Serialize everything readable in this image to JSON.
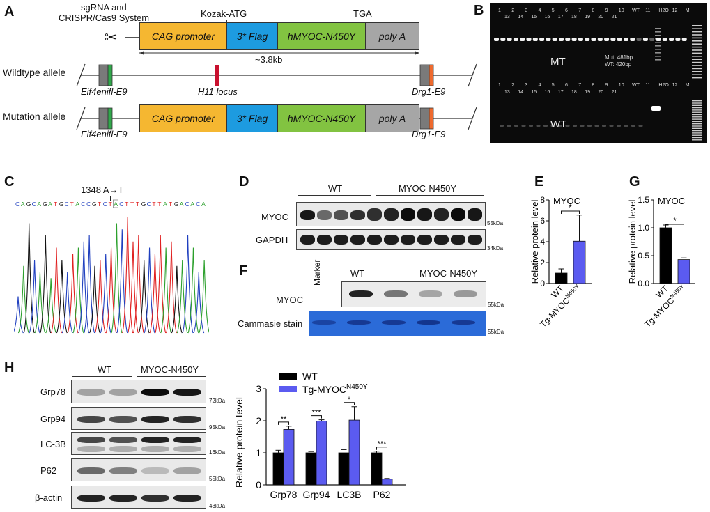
{
  "panels": {
    "A": {
      "letter": "A",
      "system_label_1": "sgRNA and",
      "system_label_2": "CRISPR/Cas9 System",
      "kozak": "Kozak-ATG",
      "tga": "TGA",
      "size": "~3.8kb",
      "wildtype": "Wildtype allele",
      "mutation": "Mutation allele",
      "eif": "Eif4enifl-E9",
      "drg": "Drg1-E9",
      "h11": "H11 locus",
      "segments": [
        "CAG promoter",
        "3* Flag",
        "hMYOC-N450Y",
        "poly A"
      ],
      "segment_colors": [
        "#f5b731",
        "#1d9be0",
        "#82c341",
        "#a6a6a6"
      ]
    },
    "B": {
      "letter": "B",
      "top_lanes_row1": [
        "1",
        "2",
        "3",
        "4",
        "5",
        "6",
        "7",
        "8",
        "9",
        "10",
        "WT",
        "11",
        "H2O",
        "12",
        "M"
      ],
      "top_lanes_row2": [
        "13",
        "14",
        "15",
        "16",
        "17",
        "18",
        "19",
        "20",
        "21"
      ],
      "mut_note_1": "Mut: 481bp",
      "mut_note_2": "WT: 420bp",
      "mt": "MT",
      "wt": "WT"
    },
    "C": {
      "letter": "C",
      "mutation": "1348 A→T",
      "sequence": "CAGCAGATGCTACCGTCTACTTTGCTTATGACACA"
    },
    "D": {
      "letter": "D",
      "group1": "WT",
      "group2": "MYOC-N450Y",
      "row1": "MYOC",
      "row2": "GAPDH",
      "kda1": "55kDa",
      "kda2": "34kDa"
    },
    "E": {
      "letter": "E",
      "title": "MYOC",
      "ylabel": "Relative protein level",
      "sig": "*",
      "cat1": "WT",
      "cat2_base": "Tg-MYOC",
      "cat2_sup": "N450Y"
    },
    "F": {
      "letter": "F",
      "marker": "Marker",
      "group1": "WT",
      "group2": "MYOC-N450Y",
      "row1": "MYOC",
      "row2": "Cammasie stain",
      "kda1": "55kDa",
      "kda2": "55kDa"
    },
    "G": {
      "letter": "G",
      "title": "MYOC",
      "ylabel": "Relative protein level",
      "sig": "*",
      "cat1": "WT",
      "cat2_base": "Tg-MYOC",
      "cat2_sup": "N450Y"
    },
    "H": {
      "letter": "H",
      "group1": "WT",
      "group2": "MYOC-N450Y",
      "rows": [
        "Grp78",
        "Grp94",
        "LC-3B",
        "P62",
        "β-actin"
      ],
      "kdas": [
        "72kDa",
        "95kDa",
        "16kDa",
        "55kDa",
        "43kDa"
      ],
      "legend_wt": "WT",
      "legend_tg_base": "Tg-MYOC",
      "legend_tg_sup": "N450Y",
      "ylabel": "Relative protein level",
      "sigs": [
        "**",
        "***",
        "*",
        "***"
      ]
    }
  },
  "chart_data": [
    {
      "id": "E",
      "type": "bar",
      "title": "MYOC",
      "ylabel": "Relative protein level",
      "categories": [
        "WT",
        "Tg-MYOC N450Y"
      ],
      "values": [
        1.0,
        4.05
      ],
      "errors": [
        0.4,
        2.5
      ],
      "colors": [
        "#000000",
        "#5b5bf0"
      ],
      "ylim": [
        0,
        8
      ],
      "yticks": [
        0,
        2,
        4,
        6,
        8
      ]
    },
    {
      "id": "G",
      "type": "bar",
      "title": "MYOC",
      "ylabel": "Relative protein level",
      "categories": [
        "WT",
        "Tg-MYOC N450Y"
      ],
      "values": [
        1.0,
        0.43
      ],
      "errors": [
        0.05,
        0.03
      ],
      "colors": [
        "#000000",
        "#5b5bf0"
      ],
      "ylim": [
        0,
        1.5
      ],
      "yticks": [
        0.0,
        0.5,
        1.0,
        1.5
      ]
    },
    {
      "id": "H",
      "type": "bar",
      "ylabel": "Relative protein level",
      "categories": [
        "Grp78",
        "Grp94",
        "LC3B",
        "P62"
      ],
      "series": [
        {
          "name": "WT",
          "values": [
            1.0,
            1.0,
            1.0,
            1.0
          ],
          "errors": [
            0.08,
            0.04,
            0.1,
            0.05
          ],
          "color": "#000000"
        },
        {
          "name": "Tg-MYOC N450Y",
          "values": [
            1.73,
            1.99,
            2.02,
            0.18
          ],
          "errors": [
            0.1,
            0.04,
            0.42,
            0.02
          ],
          "color": "#5b5bf0"
        }
      ],
      "ylim": [
        0,
        3
      ],
      "yticks": [
        0,
        1,
        2,
        3
      ]
    }
  ]
}
